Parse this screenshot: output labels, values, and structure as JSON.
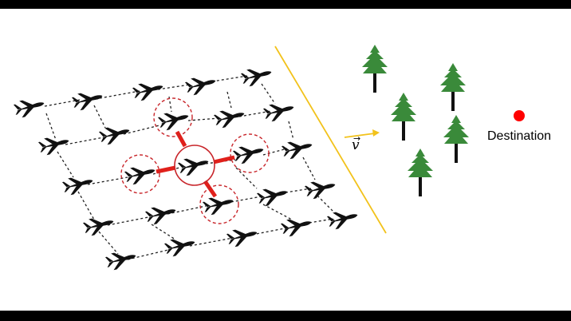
{
  "diagram": {
    "velocity_symbol": "v",
    "velocity_arrow_glyph": "→",
    "destination_label": "Destination",
    "colors": {
      "background": "#ffffff",
      "frame": "#000000",
      "aircraft": "#111111",
      "grid_line": "#222222",
      "highlight_red": "#e0201b",
      "dashed_circle": "#c8252a",
      "boundary_line": "#f2c21b",
      "velocity_arrow": "#f2c21b",
      "tree_foliage": "#3a8a3a",
      "tree_trunk": "#111111",
      "destination_dot": "#ff0000"
    },
    "icons": [
      "airplane-icon",
      "tree-icon",
      "destination-marker-icon"
    ]
  }
}
